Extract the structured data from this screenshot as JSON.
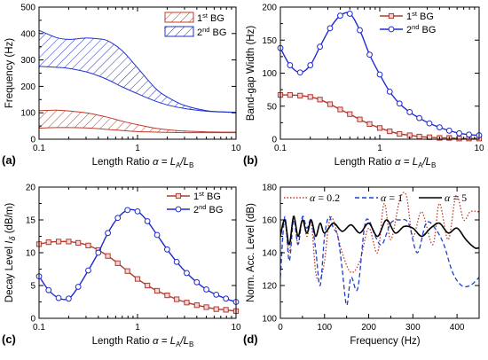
{
  "chart_data": [
    {
      "panel_label": "(a)",
      "type": "area",
      "x_log": true,
      "xlim": [
        0.1,
        10
      ],
      "ylim": [
        0,
        500
      ],
      "xticks": [
        0.1,
        1,
        10
      ],
      "xtick_labels": [
        "0.1",
        "1",
        "10"
      ],
      "yticks": [
        0,
        100,
        200,
        300,
        400,
        500
      ],
      "ylabel": "Frequency (Hz)",
      "xlabel": "Length Ratio α = L_A/L_B",
      "legend_position": "top-right",
      "x": [
        0.1,
        0.15,
        0.2,
        0.3,
        0.4,
        0.5,
        0.7,
        1,
        1.5,
        2,
        3,
        5,
        7,
        10
      ],
      "series": [
        {
          "name": "1st BG",
          "color": "#c0392b",
          "hatch": "red-diagonal",
          "lower": [
            42,
            44,
            44,
            43,
            40,
            37,
            33,
            29,
            27,
            26,
            25,
            25,
            25,
            25
          ],
          "upper": [
            108,
            110,
            107,
            100,
            91,
            83,
            68,
            55,
            42,
            36,
            31,
            28,
            27,
            27
          ]
        },
        {
          "name": "2nd BG",
          "color": "#2233cc",
          "hatch": "blue-diagonal",
          "lower": [
            276,
            272,
            268,
            255,
            240,
            225,
            198,
            172,
            145,
            130,
            116,
            106,
            103,
            101
          ],
          "upper": [
            412,
            385,
            378,
            383,
            380,
            372,
            335,
            270,
            195,
            160,
            128,
            108,
            104,
            102
          ]
        }
      ]
    },
    {
      "panel_label": "(b)",
      "type": "line",
      "x_log": true,
      "xlim": [
        0.1,
        10
      ],
      "ylim": [
        0,
        200
      ],
      "xticks": [
        0.1,
        1,
        10
      ],
      "xtick_labels": [
        "0.1",
        "1",
        "10"
      ],
      "yticks": [
        0,
        50,
        100,
        150,
        200
      ],
      "ylabel": "Band-gap Width (Hz)",
      "xlabel": "Length Ratio α = L_A/L_B",
      "legend_position": "top-left",
      "series": [
        {
          "name": "1st BG",
          "color": "#b03a2e",
          "marker": "square",
          "x": [
            0.1,
            0.125,
            0.158,
            0.2,
            0.25,
            0.316,
            0.4,
            0.5,
            0.63,
            0.79,
            1,
            1.26,
            1.58,
            2,
            2.5,
            3.16,
            4,
            5,
            6.3,
            7.9,
            10
          ],
          "y": [
            67,
            67,
            66,
            64,
            60,
            53,
            45,
            38,
            30,
            23,
            17,
            12,
            8,
            6,
            4,
            3,
            2,
            2,
            1,
            1,
            1
          ]
        },
        {
          "name": "2nd BG",
          "color": "#1f2bd1",
          "marker": "circle",
          "x": [
            0.1,
            0.125,
            0.158,
            0.2,
            0.25,
            0.316,
            0.4,
            0.5,
            0.63,
            0.79,
            1,
            1.26,
            1.58,
            2,
            2.5,
            3.16,
            4,
            5,
            6.3,
            7.9,
            10
          ],
          "y": [
            138,
            112,
            101,
            112,
            140,
            168,
            187,
            190,
            165,
            128,
            98,
            72,
            54,
            41,
            32,
            24,
            18,
            13,
            9,
            7,
            6
          ]
        }
      ]
    },
    {
      "panel_label": "(c)",
      "type": "line",
      "x_log": true,
      "xlim": [
        0.1,
        10
      ],
      "ylim": [
        0,
        20
      ],
      "xticks": [
        0.1,
        1,
        10
      ],
      "xtick_labels": [
        "0.1",
        "1",
        "10"
      ],
      "yticks": [
        0,
        5,
        10,
        15,
        20
      ],
      "ylabel": "Decay Level Iδ (dB/m)",
      "xlabel": "Length Ratio α = L_A/L_B",
      "legend_position": "top-right",
      "series": [
        {
          "name": "1st BG",
          "color": "#b03a2e",
          "marker": "square",
          "x": [
            0.1,
            0.125,
            0.158,
            0.2,
            0.25,
            0.316,
            0.4,
            0.5,
            0.63,
            0.79,
            1,
            1.26,
            1.58,
            2,
            2.5,
            3.16,
            4,
            5,
            6.3,
            7.9,
            10
          ],
          "y": [
            11.3,
            11.6,
            11.7,
            11.7,
            11.5,
            11.1,
            10.4,
            9.5,
            8.4,
            7.2,
            6.0,
            5.0,
            4.2,
            3.5,
            2.9,
            2.4,
            2.0,
            1.7,
            1.4,
            1.3,
            1.1
          ]
        },
        {
          "name": "2nd BG",
          "color": "#1f2bd1",
          "marker": "circle",
          "x": [
            0.1,
            0.125,
            0.158,
            0.2,
            0.25,
            0.316,
            0.4,
            0.5,
            0.63,
            0.79,
            1,
            1.26,
            1.58,
            2,
            2.5,
            3.16,
            4,
            5,
            6.3,
            7.9,
            10
          ],
          "y": [
            6.4,
            4.3,
            3.1,
            3.0,
            4.8,
            7.3,
            10.0,
            13.0,
            15.3,
            16.5,
            16.3,
            14.8,
            12.7,
            10.5,
            8.6,
            6.9,
            5.5,
            4.4,
            3.6,
            3.0,
            2.5
          ]
        }
      ]
    },
    {
      "panel_label": "(d)",
      "type": "line",
      "x_log": false,
      "xlim": [
        0,
        450
      ],
      "ylim": [
        100,
        180
      ],
      "xticks": [
        0,
        100,
        200,
        300,
        400
      ],
      "yticks": [
        100,
        120,
        140,
        160,
        180
      ],
      "ylabel": "Norm. Acc. Level (dB)",
      "xlabel": "Frequency (Hz)",
      "legend_position": "top",
      "series": [
        {
          "name": "α = 0.2",
          "color": "#c0392b",
          "dash": "dotted",
          "x": [
            0,
            10,
            20,
            30,
            40,
            50,
            60,
            70,
            80,
            90,
            100,
            110,
            120,
            140,
            160,
            180,
            200,
            220,
            235,
            250,
            270,
            285,
            300,
            320,
            345,
            360,
            380,
            398,
            415,
            430,
            450
          ],
          "y": [
            150,
            160,
            140,
            163,
            145,
            161,
            150,
            158,
            128,
            124,
            135,
            158,
            160,
            140,
            128,
            135,
            155,
            140,
            170,
            148,
            172,
            175,
            150,
            165,
            145,
            170,
            148,
            175,
            160,
            165,
            165
          ]
        },
        {
          "name": "α = 1",
          "color": "#1f3fd1",
          "dash": "dashed",
          "x": [
            0,
            10,
            20,
            30,
            40,
            50,
            60,
            70,
            80,
            90,
            100,
            110,
            120,
            130,
            140,
            150,
            160,
            175,
            190,
            200,
            215,
            230,
            250,
            270,
            290,
            310,
            330,
            350,
            370,
            390,
            410,
            430,
            450
          ],
          "y": [
            125,
            162,
            135,
            160,
            145,
            162,
            155,
            160,
            142,
            120,
            150,
            162,
            155,
            150,
            130,
            108,
            125,
            118,
            155,
            160,
            150,
            145,
            158,
            160,
            158,
            140,
            158,
            155,
            145,
            128,
            120,
            120,
            125
          ]
        },
        {
          "name": "α = 5",
          "color": "#000000",
          "dash": "solid",
          "x": [
            0,
            10,
            20,
            30,
            40,
            50,
            60,
            70,
            80,
            90,
            100,
            120,
            140,
            160,
            180,
            200,
            220,
            240,
            260,
            280,
            300,
            320,
            340,
            360,
            380,
            400,
            420,
            440,
            450
          ],
          "y": [
            150,
            160,
            145,
            162,
            150,
            160,
            152,
            160,
            150,
            158,
            152,
            158,
            153,
            157,
            152,
            158,
            150,
            160,
            152,
            156,
            155,
            150,
            155,
            158,
            152,
            155,
            148,
            143,
            143
          ]
        }
      ]
    }
  ]
}
